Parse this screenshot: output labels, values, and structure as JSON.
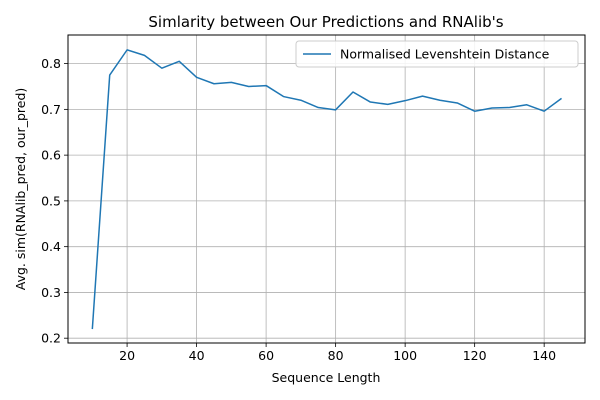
{
  "chart_data": {
    "type": "line",
    "title": "Simlarity between Our Predictions and RNAlib's",
    "xlabel": "Sequence Length",
    "ylabel": "Avg. sim(RNAlib_pred, our_pred)",
    "xlim": [
      3,
      151.75
    ],
    "ylim": [
      0.1895,
      0.8625
    ],
    "xticks": [
      20,
      40,
      60,
      80,
      100,
      120,
      140
    ],
    "yticks": [
      0.2,
      0.3,
      0.4,
      0.5,
      0.6,
      0.7,
      0.8
    ],
    "xtick_labels": [
      "20",
      "40",
      "60",
      "80",
      "100",
      "120",
      "140"
    ],
    "ytick_labels": [
      "0.2",
      "0.3",
      "0.4",
      "0.5",
      "0.6",
      "0.7",
      "0.8"
    ],
    "grid": true,
    "legend_position": "top-right",
    "series": [
      {
        "name": "Normalised Levenshtein Distance",
        "color": "#1f77b4",
        "x": [
          10,
          15,
          20,
          25,
          30,
          35,
          40,
          45,
          50,
          55,
          60,
          65,
          70,
          75,
          80,
          85,
          90,
          95,
          100,
          105,
          110,
          115,
          120,
          125,
          130,
          135,
          140,
          145
        ],
        "y": [
          0.22,
          0.775,
          0.83,
          0.818,
          0.79,
          0.805,
          0.77,
          0.756,
          0.759,
          0.75,
          0.752,
          0.728,
          0.72,
          0.704,
          0.699,
          0.738,
          0.716,
          0.711,
          0.719,
          0.729,
          0.72,
          0.714,
          0.696,
          0.703,
          0.704,
          0.71,
          0.696,
          0.724
        ]
      }
    ]
  }
}
